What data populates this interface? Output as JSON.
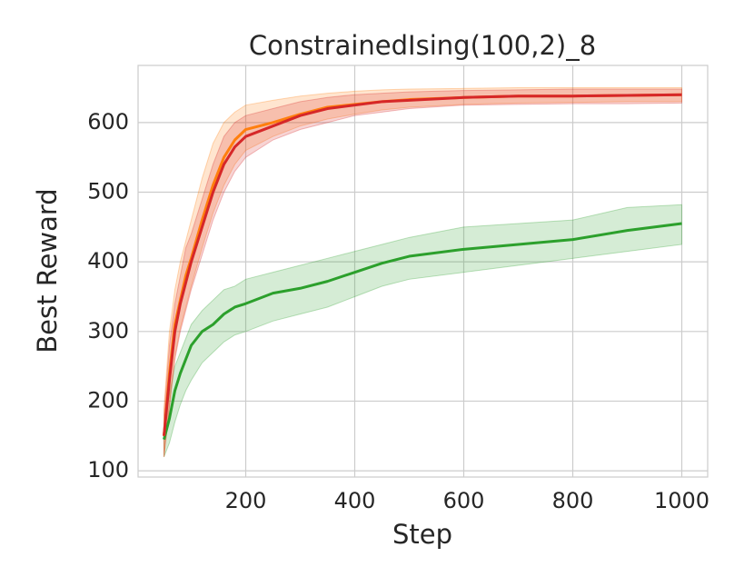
{
  "chart_data": {
    "type": "line",
    "title": "ConstrainedIsing(100,2)_8",
    "x_label": "Step",
    "y_label": "Best Reward",
    "x": [
      50,
      60,
      70,
      80,
      90,
      100,
      120,
      140,
      160,
      180,
      200,
      250,
      300,
      350,
      400,
      450,
      500,
      600,
      700,
      800,
      900,
      1000
    ],
    "series": [
      {
        "color": "#2ca02c",
        "values": [
          145,
          175,
          215,
          240,
          260,
          280,
          300,
          310,
          325,
          335,
          340,
          355,
          362,
          372,
          385,
          398,
          408,
          418,
          425,
          432,
          445,
          455
        ],
        "lower": [
          120,
          140,
          170,
          195,
          215,
          230,
          255,
          270,
          285,
          295,
          300,
          315,
          325,
          335,
          350,
          365,
          375,
          385,
          395,
          405,
          415,
          425
        ],
        "upper": [
          165,
          210,
          250,
          270,
          290,
          310,
          330,
          345,
          360,
          365,
          375,
          385,
          395,
          405,
          415,
          425,
          435,
          450,
          455,
          460,
          478,
          482
        ]
      },
      {
        "color": "#ff7f0e",
        "values": [
          150,
          240,
          310,
          345,
          380,
          405,
          460,
          510,
          550,
          575,
          590,
          600,
          612,
          622,
          626,
          630,
          633,
          636,
          638,
          638,
          639,
          640
        ],
        "lower": [
          120,
          195,
          265,
          305,
          335,
          365,
          420,
          470,
          510,
          540,
          560,
          580,
          595,
          605,
          612,
          618,
          622,
          626,
          628,
          629,
          630,
          630
        ],
        "upper": [
          190,
          300,
          360,
          400,
          430,
          460,
          520,
          570,
          600,
          615,
          625,
          632,
          638,
          642,
          645,
          647,
          648,
          649,
          650,
          650,
          650,
          650
        ]
      },
      {
        "color": "#d62728",
        "values": [
          150,
          230,
          300,
          340,
          370,
          400,
          450,
          500,
          540,
          565,
          580,
          595,
          610,
          620,
          625,
          630,
          632,
          636,
          638,
          638,
          639,
          640
        ],
        "lower": [
          120,
          190,
          260,
          300,
          330,
          360,
          410,
          460,
          500,
          530,
          550,
          575,
          590,
          600,
          610,
          615,
          620,
          625,
          626,
          627,
          627,
          628
        ],
        "upper": [
          180,
          280,
          340,
          380,
          420,
          440,
          490,
          540,
          580,
          600,
          610,
          620,
          630,
          636,
          640,
          642,
          644,
          646,
          647,
          648,
          648,
          648
        ]
      }
    ],
    "band_opacity": 0.2,
    "xlim": [
      2.5,
      1047.5
    ],
    "xticks": [
      200,
      400,
      600,
      800,
      1000
    ],
    "ylim": [
      91,
      682
    ],
    "yticks": [
      100,
      200,
      300,
      400,
      500,
      600
    ],
    "grid": true
  }
}
